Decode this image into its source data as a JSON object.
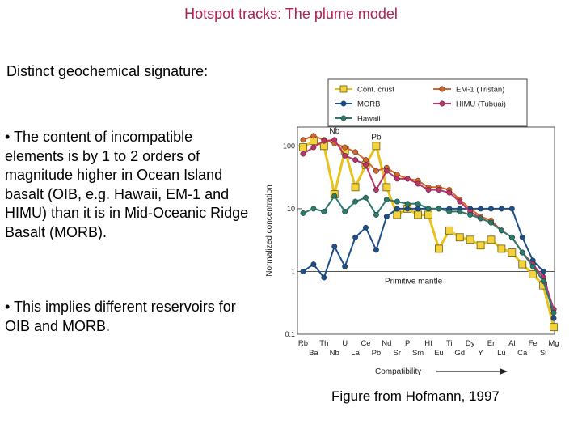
{
  "title": "Hotspot tracks: The plume model",
  "subtitle": "Distinct geochemical signature:",
  "bullets": [
    "• The content of incompatible elements is by 1 to 2 orders of magnitude higher in Ocean Island basalt (OIB, e.g. Hawaii, EM-1 and HIMU) than it is in Mid-Oceanic Ridge Basalt (MORB).",
    "• This implies different reservoirs for OIB and MORB."
  ],
  "caption": "Figure from Hofmann, 1997",
  "chart_data": {
    "type": "line",
    "log_y": true,
    "ylim": [
      0.1,
      200
    ],
    "ylabel": "Normalized concentration",
    "xlabel": "Compatibility",
    "y_ticks": [
      {
        "value": 100,
        "label": "100"
      },
      {
        "value": 10,
        "label": "10"
      },
      {
        "value": 1,
        "label": "1"
      },
      {
        "value": 0.1,
        "label": "0:1"
      }
    ],
    "reference_line": {
      "value": 1,
      "label": "Primitive mantle"
    },
    "categories": [
      "Rb",
      "Ba",
      "Th",
      "Nb",
      "U",
      "La",
      "Ce",
      "Pb",
      "Nd",
      "Sr",
      "P",
      "Sm",
      "Hf",
      "Eu",
      "Ti",
      "Gd",
      "Dy",
      "Y",
      "Er",
      "Lu",
      "Al",
      "Ca",
      "Fe",
      "Si",
      "Mg"
    ],
    "callouts": [
      {
        "label": "Nb",
        "category": "Nb"
      },
      {
        "label": "Pb",
        "category": "Pb"
      }
    ],
    "series": [
      {
        "name": "Cont. crust",
        "color": "#e8c21a",
        "marker": "square",
        "values": [
          95,
          120,
          100,
          17,
          85,
          22,
          50,
          100,
          22,
          8,
          10,
          8,
          8,
          2.3,
          4.5,
          3.5,
          3.2,
          2.6,
          3.2,
          2.3,
          2.0,
          1.3,
          0.9,
          0.6,
          0.13
        ]
      },
      {
        "name": "EM-1 (Tristan)",
        "color": "#d2662b",
        "marker": "circle",
        "values": [
          125,
          145,
          125,
          110,
          95,
          80,
          60,
          40,
          45,
          35,
          30,
          28,
          22,
          22,
          20,
          14,
          10,
          7.5,
          6.5,
          4.5,
          3.5,
          2.0,
          1.3,
          0.8,
          0.25
        ]
      },
      {
        "name": "MORB",
        "color": "#1b4f8c",
        "marker": "circle",
        "values": [
          1,
          1.3,
          0.8,
          2.5,
          1.2,
          3.5,
          5,
          2.2,
          7.5,
          10,
          10,
          10,
          10,
          10,
          10,
          10,
          10,
          10,
          10,
          10,
          10,
          3.5,
          1.5,
          1.0,
          0.18
        ]
      },
      {
        "name": "HIMU (Tubuai)",
        "color": "#c0326a",
        "marker": "circle",
        "values": [
          75,
          95,
          120,
          125,
          70,
          60,
          50,
          20,
          40,
          30,
          30,
          25,
          20,
          20,
          18,
          13,
          9,
          7,
          6,
          4.5,
          3.5,
          2.0,
          1.3,
          0.8,
          0.25
        ]
      },
      {
        "name": "Hawaii",
        "color": "#2a7a6e",
        "marker": "circle",
        "values": [
          8.5,
          10,
          9,
          16,
          9,
          13,
          15,
          8,
          14,
          13,
          12,
          12,
          10,
          10,
          9,
          9,
          8,
          7,
          6,
          4.5,
          3.5,
          2.0,
          1.2,
          0.7,
          0.22
        ]
      }
    ],
    "legend_position": "top"
  }
}
